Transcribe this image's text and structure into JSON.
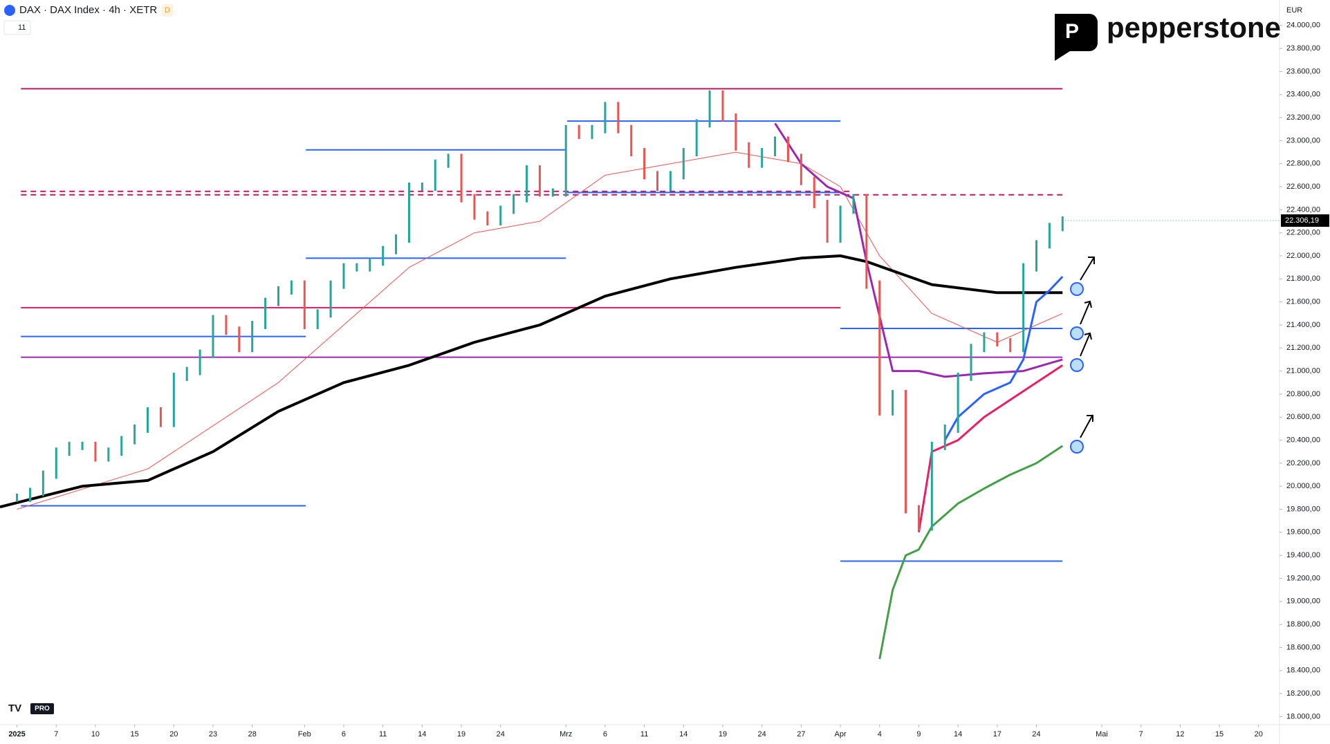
{
  "header": {
    "symbol": "DAX · DAX Index · 4h · XETR",
    "source_badge": "D",
    "indicator_count": "11"
  },
  "brand": "pepperstone",
  "badge": "PRO",
  "currency": "EUR",
  "chart_data": {
    "type": "line",
    "xlim": [
      -1.3,
      96.6
    ],
    "ylim": [
      18000,
      24000
    ],
    "xticks": [
      {
        "value": 0,
        "label": "2025"
      },
      {
        "value": 3,
        "label": "7"
      },
      {
        "value": 6,
        "label": "10"
      },
      {
        "value": 9,
        "label": "15"
      },
      {
        "value": 12,
        "label": "20"
      },
      {
        "value": 15,
        "label": "23"
      },
      {
        "value": 18,
        "label": "28"
      },
      {
        "value": 22,
        "label": "Feb"
      },
      {
        "value": 25,
        "label": "6"
      },
      {
        "value": 28,
        "label": "11"
      },
      {
        "value": 31,
        "label": "14"
      },
      {
        "value": 34,
        "label": "19"
      },
      {
        "value": 37,
        "label": "24"
      },
      {
        "value": 42,
        "label": "Mrz"
      },
      {
        "value": 45,
        "label": "6"
      },
      {
        "value": 48,
        "label": "11"
      },
      {
        "value": 51,
        "label": "14"
      },
      {
        "value": 54,
        "label": "19"
      },
      {
        "value": 57,
        "label": "24"
      },
      {
        "value": 60,
        "label": "27"
      },
      {
        "value": 63,
        "label": "Apr"
      },
      {
        "value": 66,
        "label": "4"
      },
      {
        "value": 69,
        "label": "9"
      },
      {
        "value": 72,
        "label": "14"
      },
      {
        "value": 75,
        "label": "17"
      },
      {
        "value": 78,
        "label": "24"
      },
      {
        "value": 83,
        "label": "Mai"
      },
      {
        "value": 86,
        "label": "7"
      },
      {
        "value": 89,
        "label": "12"
      },
      {
        "value": 92,
        "label": "15"
      },
      {
        "value": 95,
        "label": "20"
      }
    ],
    "yticks": [
      {
        "value": 18000,
        "label": "18.000,00"
      },
      {
        "value": 18200,
        "label": "18.200,00"
      },
      {
        "value": 18400,
        "label": "18.400,00"
      },
      {
        "value": 18600,
        "label": "18.600,00"
      },
      {
        "value": 18800,
        "label": "18.800,00"
      },
      {
        "value": 19000,
        "label": "19.000,00"
      },
      {
        "value": 19200,
        "label": "19.200,00"
      },
      {
        "value": 19400,
        "label": "19.400,00"
      },
      {
        "value": 19600,
        "label": "19.600,00"
      },
      {
        "value": 19800,
        "label": "19.800,00"
      },
      {
        "value": 20000,
        "label": "20.000,00"
      },
      {
        "value": 20200,
        "label": "20.200,00"
      },
      {
        "value": 20400,
        "label": "20.400,00"
      },
      {
        "value": 20600,
        "label": "20.600,00"
      },
      {
        "value": 20800,
        "label": "20.800,00"
      },
      {
        "value": 21000,
        "label": "21.000,00"
      },
      {
        "value": 21200,
        "label": "21.200,00"
      },
      {
        "value": 21400,
        "label": "21.400,00"
      },
      {
        "value": 21600,
        "label": "21.600,00"
      },
      {
        "value": 21800,
        "label": "21.800,00"
      },
      {
        "value": 22000,
        "label": "22.000,00"
      },
      {
        "value": 22200,
        "label": "22.200,00"
      },
      {
        "value": 22400,
        "label": "22.400,00"
      },
      {
        "value": 22600,
        "label": "22.600,00"
      },
      {
        "value": 22800,
        "label": "22.800,00"
      },
      {
        "value": 23000,
        "label": "23.000,00"
      },
      {
        "value": 23200,
        "label": "23.200,00"
      },
      {
        "value": 23400,
        "label": "23.400,00"
      },
      {
        "value": 23600,
        "label": "23.600,00"
      },
      {
        "value": 23800,
        "label": "23.800,00"
      },
      {
        "value": 24000,
        "label": "24.000,00"
      }
    ],
    "price": {
      "up_color": "#26a69a",
      "down_color": "#ef5350",
      "values": [
        19900,
        19950,
        20100,
        20300,
        20350,
        20350,
        20250,
        20300,
        20400,
        20500,
        20650,
        20550,
        20950,
        21000,
        21150,
        21450,
        21350,
        21200,
        21400,
        21600,
        21700,
        21750,
        21400,
        21500,
        21750,
        21900,
        21900,
        21950,
        22050,
        22150,
        22600,
        22600,
        22800,
        22850,
        22500,
        22350,
        22300,
        22400,
        22500,
        22750,
        22550,
        22550,
        23100,
        23050,
        23100,
        23300,
        23100,
        22900,
        22700,
        22600,
        22700,
        22900,
        23150,
        23400,
        23200,
        22950,
        22800,
        22900,
        23000,
        22850,
        22650,
        22450,
        22150,
        22400,
        22500,
        21750,
        20650,
        20800,
        19800,
        19650,
        20350,
        20500,
        20950,
        21200,
        21300,
        21250,
        21200,
        21900,
        22100,
        22250,
        22306.19
      ]
    },
    "last_price": {
      "value": 22306.19,
      "label": "22.306,19"
    },
    "series": [
      {
        "color": "#ef5350",
        "width": 1,
        "x": [
          0,
          10,
          20,
          30,
          35,
          40,
          45,
          50,
          55,
          60,
          63,
          66,
          70,
          75,
          80
        ],
        "values": [
          19800,
          20150,
          20900,
          21900,
          22200,
          22300,
          22700,
          22800,
          22900,
          22800,
          22600,
          22000,
          21500,
          21250,
          21500
        ]
      },
      {
        "color": "#000000",
        "width": 4,
        "x": [
          -1.3,
          5,
          10,
          15,
          20,
          25,
          30,
          35,
          40,
          45,
          50,
          55,
          60,
          63,
          65,
          70,
          75,
          80
        ],
        "values": [
          19820,
          20000,
          20050,
          20300,
          20650,
          20900,
          21050,
          21250,
          21400,
          21650,
          21800,
          21900,
          21980,
          22000,
          21950,
          21750,
          21680,
          21680
        ]
      },
      {
        "color": "#9c27b0",
        "width": 3,
        "x": [
          58,
          60,
          62,
          64,
          65,
          67,
          69,
          71,
          74,
          77,
          80
        ],
        "values": [
          23150,
          22800,
          22600,
          22500,
          21950,
          21000,
          21000,
          20950,
          20980,
          21000,
          21100
        ]
      },
      {
        "color": "#2962ff",
        "width": 3,
        "x": [
          71,
          72,
          74,
          76,
          77,
          78,
          79,
          80
        ],
        "values": [
          20400,
          20600,
          20800,
          20900,
          21100,
          21600,
          21700,
          21820
        ]
      },
      {
        "color": "#e91e63",
        "width": 3,
        "x": [
          69,
          70,
          72,
          74,
          76,
          78,
          80
        ],
        "values": [
          19600,
          20300,
          20400,
          20600,
          20750,
          20900,
          21050
        ]
      },
      {
        "color": "#43a047",
        "width": 3,
        "x": [
          66,
          67,
          68,
          69,
          70,
          72,
          74,
          76,
          78,
          80
        ],
        "values": [
          18500,
          19100,
          19400,
          19450,
          19650,
          19850,
          19980,
          20100,
          20200,
          20350
        ]
      }
    ],
    "levels": [
      {
        "value": 23450,
        "from": 0.3,
        "to": 80,
        "color": "#c2185b",
        "dash": false
      },
      {
        "value": 22530,
        "from": 0.3,
        "to": 80,
        "color": "#c2185b",
        "dash": true
      },
      {
        "value": 22560,
        "from": 0.3,
        "to": 64,
        "color": "#c2185b",
        "dash": true
      },
      {
        "value": 21550,
        "from": 0.3,
        "to": 63,
        "color": "#e91e63",
        "dash": false
      },
      {
        "value": 21120,
        "from": 0.3,
        "to": 80,
        "color": "#9c27b0",
        "dash": false
      },
      {
        "value": 22920,
        "from": 22.1,
        "to": 42,
        "color": "#2962ff",
        "dash": false
      },
      {
        "value": 21980,
        "from": 22.1,
        "to": 42,
        "color": "#2962ff",
        "dash": false
      },
      {
        "value": 21300,
        "from": 0.3,
        "to": 22.1,
        "color": "#2962ff",
        "dash": false
      },
      {
        "value": 19830,
        "from": 0.3,
        "to": 22.1,
        "color": "#2962ff",
        "dash": false
      },
      {
        "value": 23170,
        "from": 42.1,
        "to": 63,
        "color": "#2962ff",
        "dash": false
      },
      {
        "value": 22550,
        "from": 42.1,
        "to": 63,
        "color": "#2962ff",
        "dash": false
      },
      {
        "value": 21370,
        "from": 63,
        "to": 80,
        "color": "#2962ff",
        "dash": false
      },
      {
        "value": 19350,
        "from": 63,
        "to": 80,
        "color": "#2962ff",
        "dash": false
      }
    ]
  }
}
